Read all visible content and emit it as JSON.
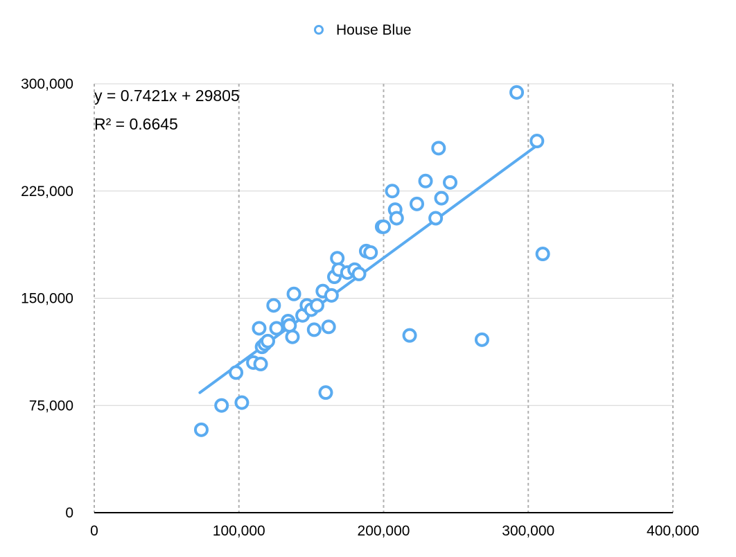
{
  "chart_data": {
    "type": "scatter",
    "title": "",
    "xlabel": "",
    "ylabel": "",
    "xlim": [
      0,
      400000
    ],
    "ylim": [
      0,
      300000
    ],
    "x_ticks": [
      0,
      100000,
      200000,
      300000,
      400000
    ],
    "y_ticks": [
      0,
      75000,
      150000,
      225000,
      300000
    ],
    "x_tick_labels": [
      "0",
      "100,000",
      "200,000",
      "300,000",
      "400,000"
    ],
    "y_tick_labels": [
      "0",
      "75,000",
      "150,000",
      "225,000",
      "300,000"
    ],
    "grid": {
      "horizontal": "solid",
      "vertical": "dashed"
    },
    "legend_position": "top-center",
    "series": [
      {
        "name": "House Blue",
        "color": "#5aabf0",
        "marker": "hollow-circle",
        "points": [
          [
            74000,
            58000
          ],
          [
            88000,
            75000
          ],
          [
            98000,
            98000
          ],
          [
            102000,
            77000
          ],
          [
            110000,
            105000
          ],
          [
            114000,
            129000
          ],
          [
            115000,
            104000
          ],
          [
            116000,
            116000
          ],
          [
            118000,
            118000
          ],
          [
            120000,
            120000
          ],
          [
            124000,
            145000
          ],
          [
            126000,
            129000
          ],
          [
            134000,
            134000
          ],
          [
            135000,
            131000
          ],
          [
            137000,
            123000
          ],
          [
            138000,
            153000
          ],
          [
            144000,
            138000
          ],
          [
            147000,
            145000
          ],
          [
            150000,
            142000
          ],
          [
            152000,
            128000
          ],
          [
            154000,
            145000
          ],
          [
            158000,
            155000
          ],
          [
            160000,
            84000
          ],
          [
            162000,
            130000
          ],
          [
            164000,
            152000
          ],
          [
            166000,
            165000
          ],
          [
            168000,
            178000
          ],
          [
            169000,
            170000
          ],
          [
            175000,
            168000
          ],
          [
            180000,
            170000
          ],
          [
            183000,
            167000
          ],
          [
            188000,
            183000
          ],
          [
            191000,
            182000
          ],
          [
            199000,
            200000
          ],
          [
            200000,
            200000
          ],
          [
            206000,
            225000
          ],
          [
            208000,
            212000
          ],
          [
            209000,
            206000
          ],
          [
            218000,
            124000
          ],
          [
            223000,
            216000
          ],
          [
            229000,
            232000
          ],
          [
            236000,
            206000
          ],
          [
            238000,
            255000
          ],
          [
            240000,
            220000
          ],
          [
            246000,
            231000
          ],
          [
            268000,
            121000
          ],
          [
            292000,
            294000
          ],
          [
            306000,
            260000
          ],
          [
            310000,
            181000
          ]
        ]
      }
    ],
    "trendline": {
      "type": "linear",
      "slope": 0.7421,
      "intercept": 29805,
      "x_range": [
        73000,
        305000
      ],
      "color": "#5aabf0",
      "equation_label": "y = 0.7421x + 29805",
      "r2_label": "R² = 0.6645"
    }
  }
}
